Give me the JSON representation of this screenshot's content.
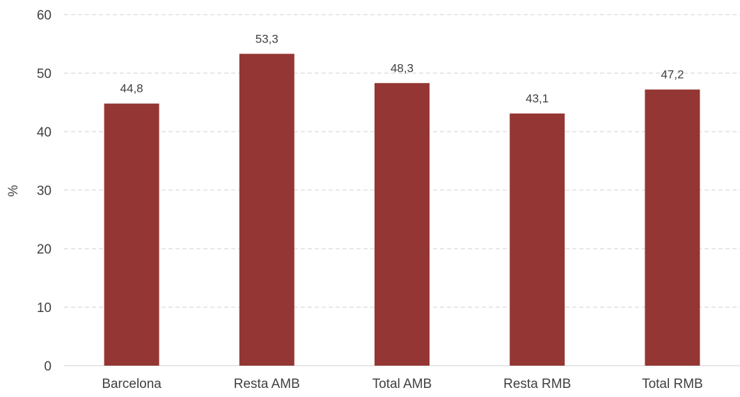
{
  "chart_data": {
    "type": "bar",
    "categories": [
      "Barcelona",
      "Resta AMB",
      "Total AMB",
      "Resta RMB",
      "Total RMB"
    ],
    "values": [
      44.8,
      53.3,
      48.3,
      43.1,
      47.2
    ],
    "data_labels": [
      "44,8",
      "53,3",
      "48,3",
      "43,1",
      "47,2"
    ],
    "title": "",
    "xlabel": "",
    "ylabel": "%",
    "ylim": [
      0,
      60
    ],
    "yticks": [
      0,
      10,
      20,
      30,
      40,
      50,
      60
    ],
    "grid": true,
    "legend": "none",
    "bar_color": "#943634"
  }
}
